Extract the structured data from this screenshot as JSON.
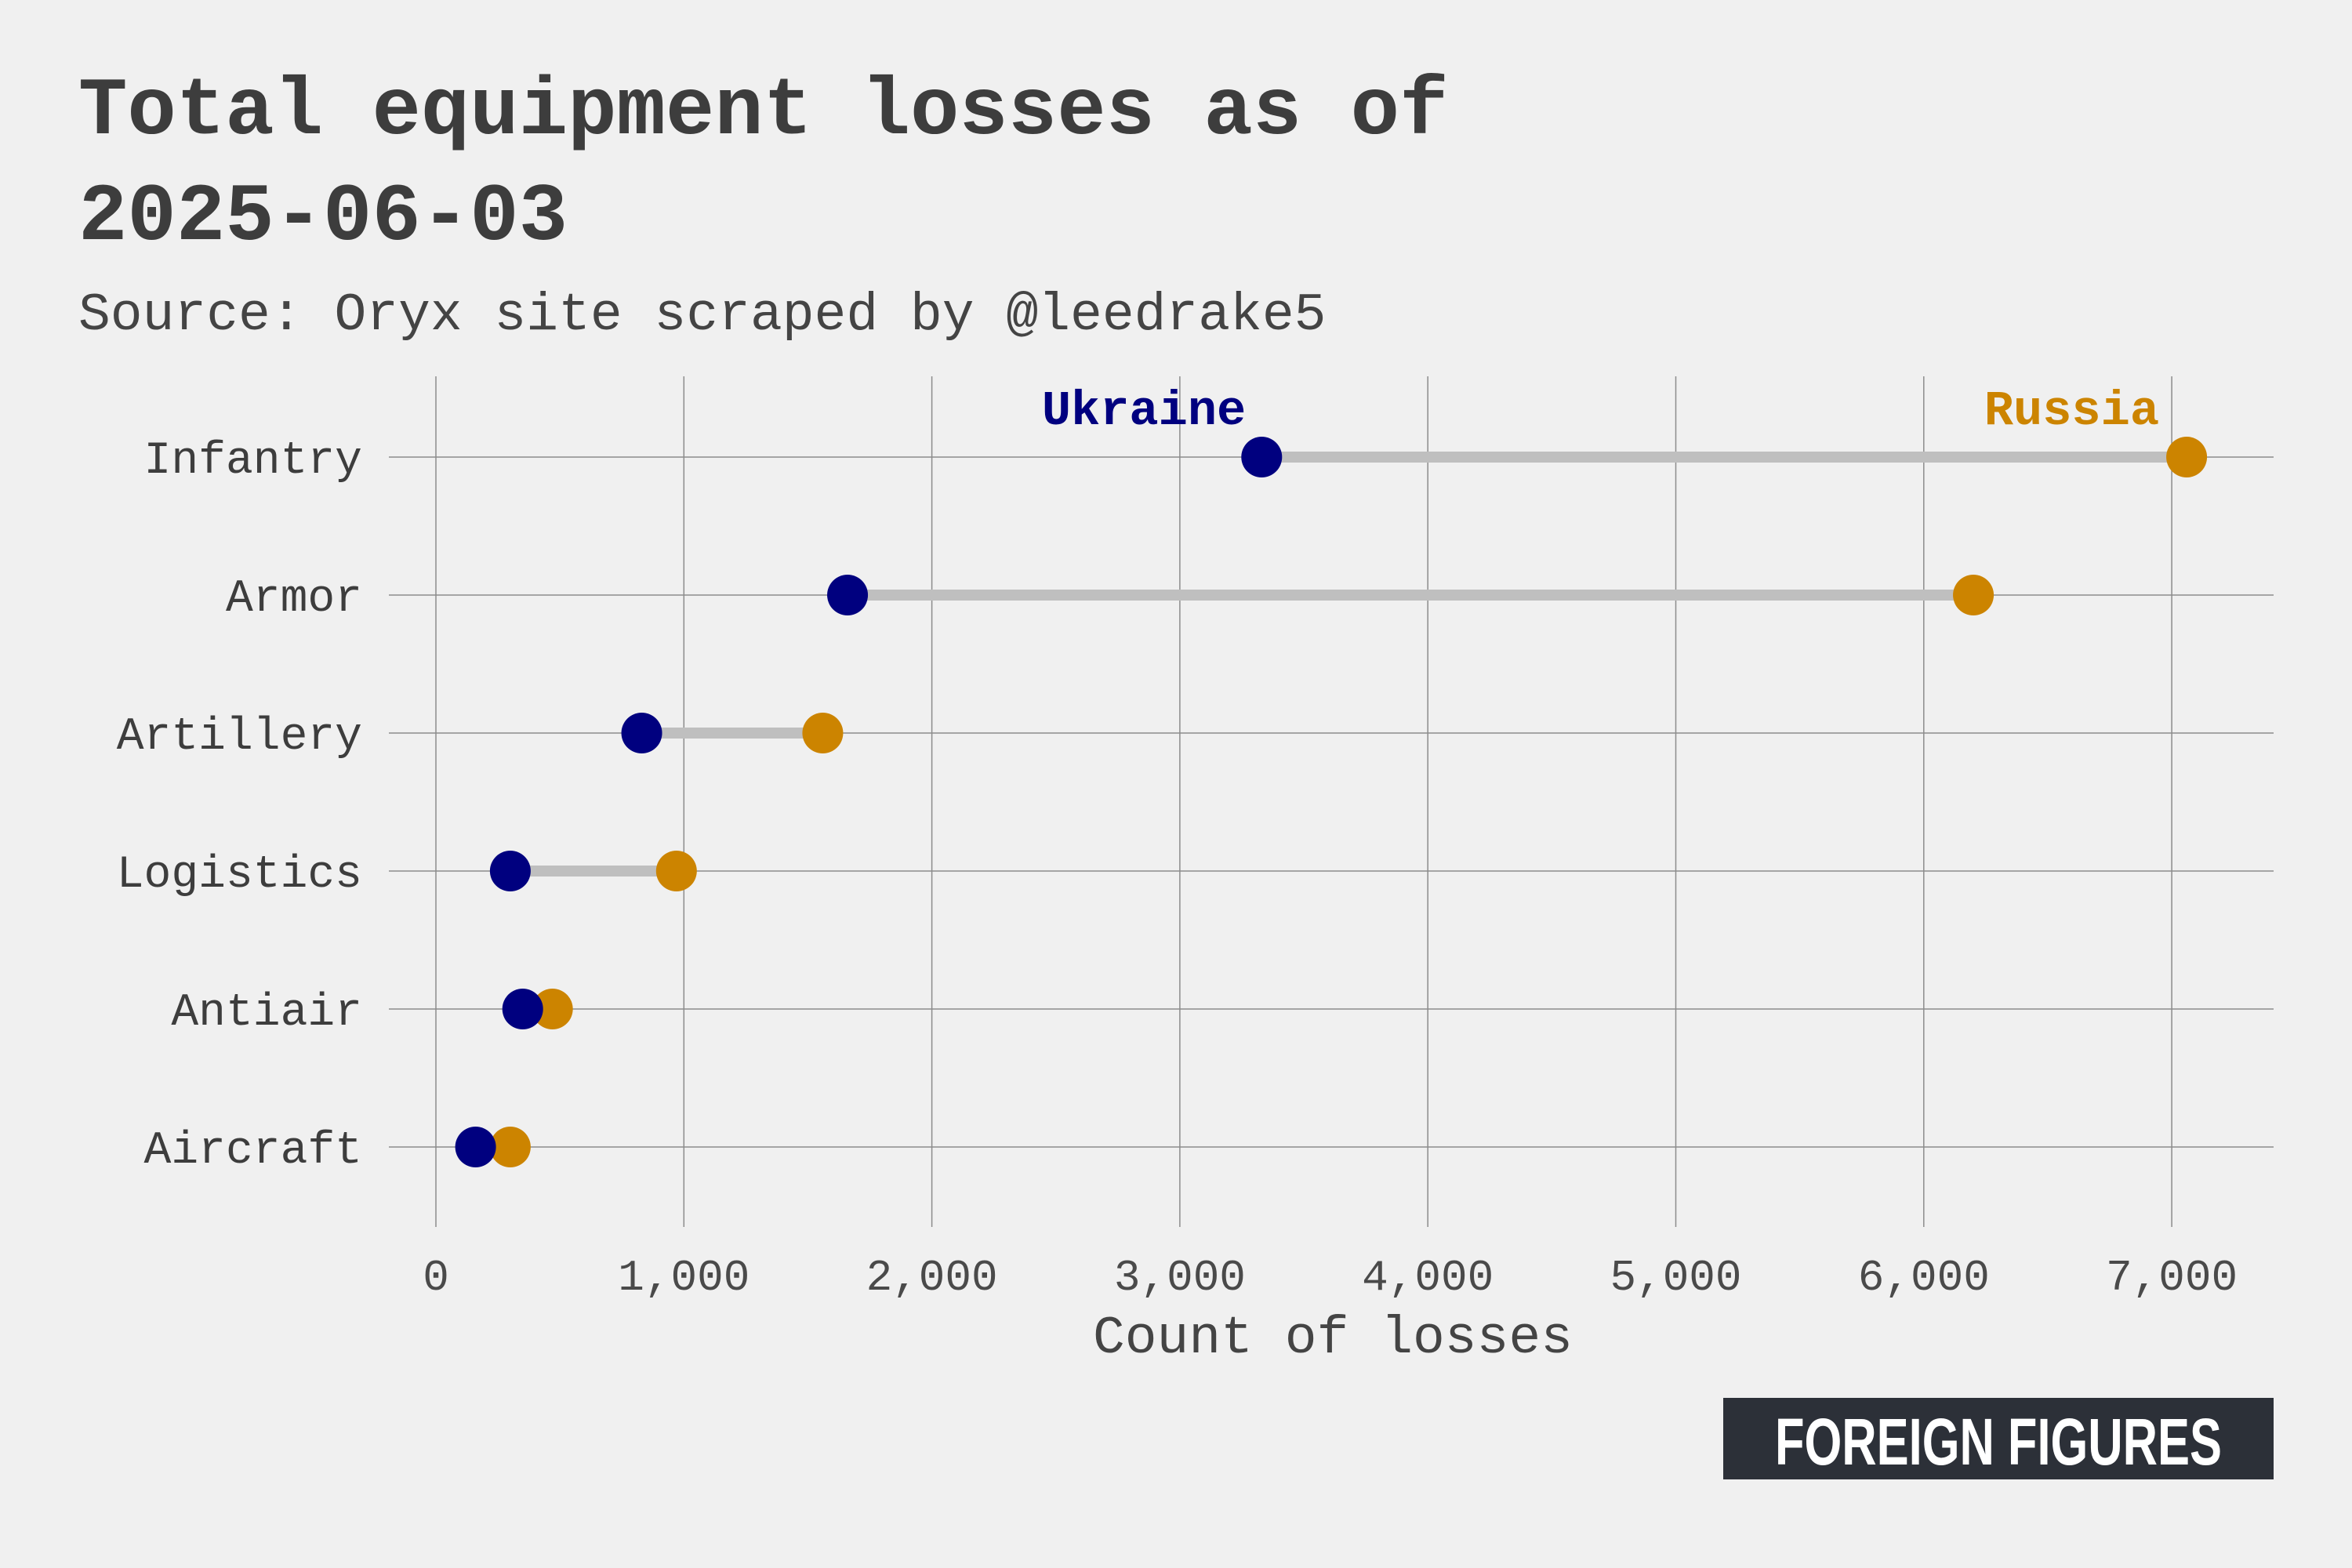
{
  "chart_data": {
    "type": "dumbbell",
    "title": "Total equipment losses as of 2025-06-03",
    "title_lines": [
      "Total equipment losses as of",
      "2025-06-03"
    ],
    "subtitle": "Source: Oryx site scraped by @leedrake5",
    "xlabel": "Count of losses",
    "ylabel": "",
    "xlim": [
      -200,
      7400
    ],
    "x_ticks": [
      0,
      1000,
      2000,
      3000,
      4000,
      5000,
      6000,
      7000
    ],
    "x_tick_labels": [
      "0",
      "1,000",
      "2,000",
      "3,000",
      "4,000",
      "5,000",
      "6,000",
      "7,000"
    ],
    "grid": true,
    "legend": "direct labels at top row",
    "categories": [
      "Infantry",
      "Armor",
      "Artillery",
      "Logistics",
      "Antiair",
      "Aircraft"
    ],
    "series": [
      {
        "name": "Ukraine",
        "color": "#00007f",
        "values": [
          3330,
          1660,
          830,
          300,
          350,
          160
        ]
      },
      {
        "name": "Russia",
        "color": "#cc8400",
        "values": [
          7060,
          6200,
          1560,
          970,
          470,
          300
        ]
      }
    ],
    "connector_color": "#bfbfbf"
  },
  "branding": {
    "logo_text": "FOREIGN FIGURES"
  },
  "colors": {
    "background": "#f0f0f0",
    "gridline": "#8c8c8c",
    "logo_background": "#2c3038"
  }
}
